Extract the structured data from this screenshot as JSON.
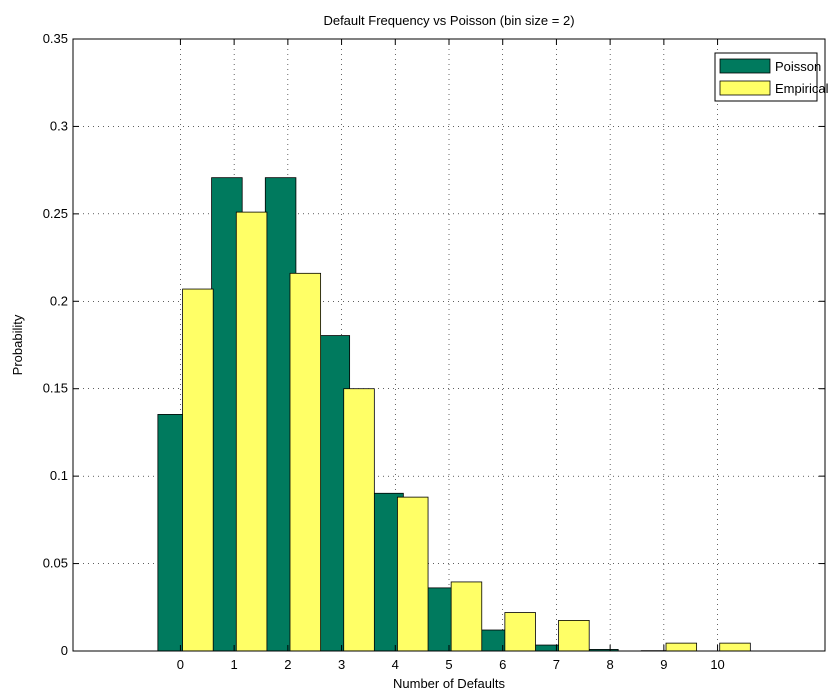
{
  "chart_data": {
    "type": "bar",
    "title": "Default Frequency vs Poisson (bin size = 2)",
    "xlabel": "Number of Defaults",
    "ylabel": "Probability",
    "categories": [
      "0",
      "1",
      "2",
      "3",
      "4",
      "5",
      "6",
      "7",
      "8",
      "9",
      "10"
    ],
    "xlim": [
      -2,
      12
    ],
    "ylim": [
      0,
      0.35
    ],
    "yticks": [
      "0",
      "0.05",
      "0.1",
      "0.15",
      "0.2",
      "0.25",
      "0.3",
      "0.35"
    ],
    "grid": true,
    "legend_position": "top-right",
    "series": [
      {
        "name": "Poisson",
        "color": "#007a5e",
        "values": [
          0.1353,
          0.2707,
          0.2707,
          0.1804,
          0.0902,
          0.0361,
          0.012,
          0.0034,
          0.0009,
          0.0002,
          0.0
        ]
      },
      {
        "name": "Empirical",
        "color": "#ffff66",
        "values": [
          0.207,
          0.251,
          0.216,
          0.15,
          0.088,
          0.0395,
          0.022,
          0.0175,
          0.0,
          0.0045,
          0.0045
        ]
      }
    ]
  }
}
